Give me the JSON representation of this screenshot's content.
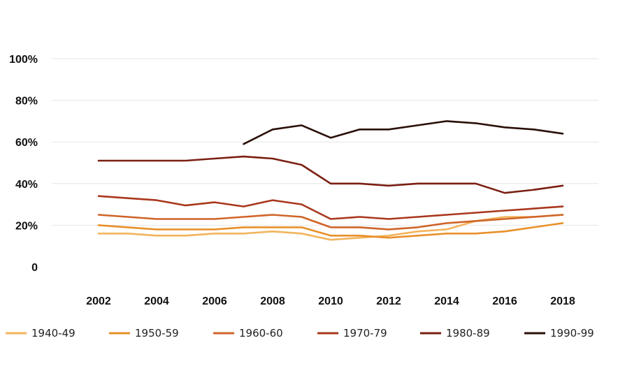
{
  "chart_data": {
    "type": "line",
    "title": "",
    "xlabel": "",
    "ylabel": "",
    "x": [
      2002,
      2003,
      2004,
      2005,
      2006,
      2007,
      2008,
      2009,
      2010,
      2011,
      2012,
      2013,
      2014,
      2015,
      2016,
      2017,
      2018
    ],
    "xticks": [
      "2002",
      "2004",
      "2006",
      "2008",
      "2010",
      "2012",
      "2014",
      "2016",
      "2018"
    ],
    "yticks": [
      {
        "value": 0,
        "label": "0"
      },
      {
        "value": 20,
        "label": "20%"
      },
      {
        "value": 40,
        "label": "40%"
      },
      {
        "value": 60,
        "label": "60%"
      },
      {
        "value": 80,
        "label": "80%"
      },
      {
        "value": 100,
        "label": "100%"
      }
    ],
    "ylim": [
      0,
      100
    ],
    "grid": true,
    "legend_position": "bottom",
    "series": [
      {
        "name": "1940-49",
        "color": "#f2b45c",
        "values": [
          16,
          16,
          15,
          15,
          16,
          16,
          17,
          16,
          13,
          14,
          15,
          17,
          18,
          22,
          24,
          24,
          25
        ]
      },
      {
        "name": "1950-59",
        "color": "#e8902a",
        "values": [
          20,
          19,
          18,
          18,
          18,
          19,
          19,
          19,
          15,
          15,
          14,
          15,
          16,
          16,
          17,
          19,
          21
        ]
      },
      {
        "name": "1960-60",
        "color": "#cf6428",
        "values": [
          25,
          24,
          23,
          23,
          23,
          24,
          25,
          24,
          19,
          19,
          18,
          19,
          21,
          22,
          23,
          24,
          25
        ]
      },
      {
        "name": "1970-79",
        "color": "#a9371d",
        "values": [
          34,
          33,
          32,
          29.5,
          31,
          29,
          32,
          30,
          23,
          24,
          23,
          24,
          25,
          26,
          27,
          28,
          29
        ]
      },
      {
        "name": "1980-89",
        "color": "#7a1f12",
        "values": [
          51,
          51,
          51,
          51,
          52,
          53,
          52,
          49,
          40,
          40,
          39,
          40,
          40,
          40,
          35.5,
          37,
          39
        ]
      },
      {
        "name": "1990-99",
        "color": "#2a0f08",
        "values": [
          null,
          null,
          null,
          null,
          null,
          59,
          66,
          68,
          62,
          66,
          66,
          68,
          70,
          69,
          67,
          66,
          64
        ]
      }
    ]
  }
}
